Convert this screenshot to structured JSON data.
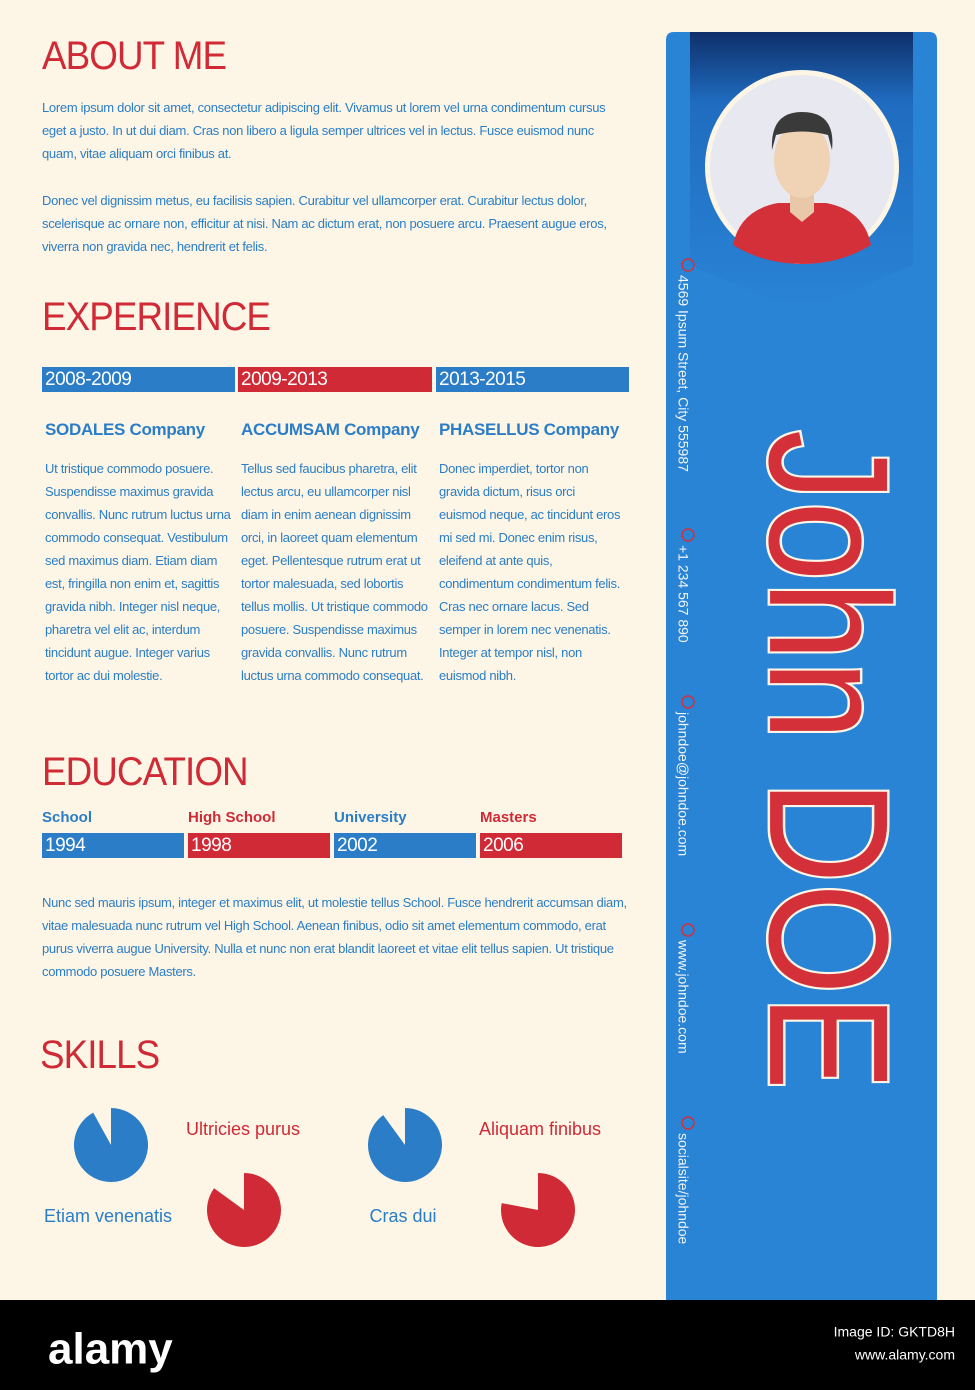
{
  "about": {
    "title": "ABOUT ME",
    "paragraphs": [
      "Lorem ipsum dolor sit amet, consectetur adipiscing elit. Vivamus ut lorem vel urna condimentum cursus eget a justo. In ut dui diam. Cras non libero a ligula semper ultrices vel in lectus. Fusce euismod nunc quam, vitae aliquam orci finibus at.",
      "Donec vel dignissim metus, eu facilisis sapien. Curabitur vel ullamcorper erat. Curabitur lectus dolor, scelerisque ac ornare non, efficitur at nisi. Nam ac dictum erat, non posuere arcu. Praesent augue eros, viverra non gravida nec, hendrerit et felis."
    ]
  },
  "experience": {
    "title": "EXPERIENCE",
    "jobs": [
      {
        "years": "2008-2009",
        "color": "#2a7dc6",
        "company": "SODALES Company",
        "description": "Ut tristique commodo posuere. Suspendisse maximus gravida convallis. Nunc rutrum luctus urna commodo consequat. Vestibulum sed maximus diam. Etiam diam est, fringilla non enim et, sagittis gravida nibh. Integer nisl neque, pharetra vel elit ac, interdum tincidunt augue. Integer varius tortor ac dui molestie."
      },
      {
        "years": "2009-2013",
        "color": "#cf2a36",
        "company": "ACCUMSAM Company",
        "description": "Tellus sed faucibus pharetra, elit lectus arcu, eu ullamcorper nisl diam in enim aenean dignissim orci, in laoreet quam elementum eget. Pellentesque rutrum erat ut tortor malesuada, sed lobortis tellus mollis. Ut tristique commodo posuere. Suspendisse maximus gravida convallis. Nunc rutrum luctus urna commodo consequat."
      },
      {
        "years": "2013-2015",
        "color": "#2a7dc6",
        "company": "PHASELLUS Company",
        "description": "Donec imperdiet, tortor non gravida dictum, risus orci euismod neque, ac tincidunt eros mi sed mi. Donec enim risus, eleifend at ante quis, condimentum condimentum felis. Cras nec ornare lacus. Sed semper in lorem nec venenatis. Integer at tempor nisl, non euismod nibh."
      }
    ]
  },
  "education": {
    "title": "EDUCATION",
    "levels": [
      {
        "label": "School",
        "year": "1994",
        "color": "#2a7dc6"
      },
      {
        "label": "High School",
        "year": "1998",
        "color": "#cf2a36"
      },
      {
        "label": "University",
        "year": "2002",
        "color": "#2a7dc6"
      },
      {
        "label": "Masters",
        "year": "2006",
        "color": "#cf2a36"
      }
    ],
    "description": "Nunc sed mauris ipsum, integer et maximus elit, ut molestie tellus School. Fusce hendrerit accumsan diam, vitae malesuada nunc rutrum vel High School. Aenean finibus, odio sit amet elementum commodo, erat purus viverra augue University. Nulla et nunc non erat blandit laoreet et vitae elit tellus sapien. Ut tristique commodo posuere Masters."
  },
  "skills": {
    "title": "SKILLS",
    "items": [
      {
        "label": "Etiam venenatis",
        "value": 92,
        "color": "#2a7dc6"
      },
      {
        "label": "Ultricies purus",
        "value": 85,
        "color": "#cf2a36"
      },
      {
        "label": "Cras dui",
        "value": 90,
        "color": "#2a7dc6"
      },
      {
        "label": "Aliquam finibus",
        "value": 78,
        "color": "#cf2a36"
      }
    ]
  },
  "profile": {
    "name": "John DOE",
    "contacts": [
      "4569 Ipsum Street, City 555987",
      "+1 234 567 890",
      "johndoe@johndoe.com",
      "www.johndoe.com",
      "socialsite/johndoe"
    ]
  },
  "watermark": {
    "brand": "alamy",
    "image_id": "Image ID: GKTD8H",
    "url": "www.alamy.com"
  }
}
